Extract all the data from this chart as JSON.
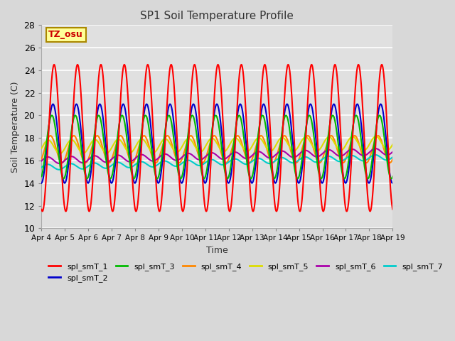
{
  "title": "SP1 Soil Temperature Profile",
  "xlabel": "Time",
  "ylabel": "Soil Temperature (C)",
  "ylim": [
    10,
    28
  ],
  "annotation": "TZ_osu",
  "annotation_color": "#cc0000",
  "annotation_bg": "#ffff99",
  "annotation_border": "#aa8800",
  "series_colors": {
    "spl_smT_1": "#ff0000",
    "spl_smT_2": "#0000cc",
    "spl_smT_3": "#00bb00",
    "spl_smT_4": "#ff8800",
    "spl_smT_5": "#dddd00",
    "spl_smT_6": "#aa00aa",
    "spl_smT_7": "#00cccc"
  },
  "tick_labels": [
    "Apr 4",
    "Apr 5",
    "Apr 6",
    "Apr 7",
    "Apr 8",
    "Apr 9",
    "Apr 10",
    "Apr 11",
    "Apr 12",
    "Apr 13",
    "Apr 14",
    "Apr 15",
    "Apr 16",
    "Apr 17",
    "Apr 18",
    "Apr 19"
  ],
  "background_color": "#e0e0e0",
  "grid_color": "#ffffff",
  "linewidth": 1.5
}
